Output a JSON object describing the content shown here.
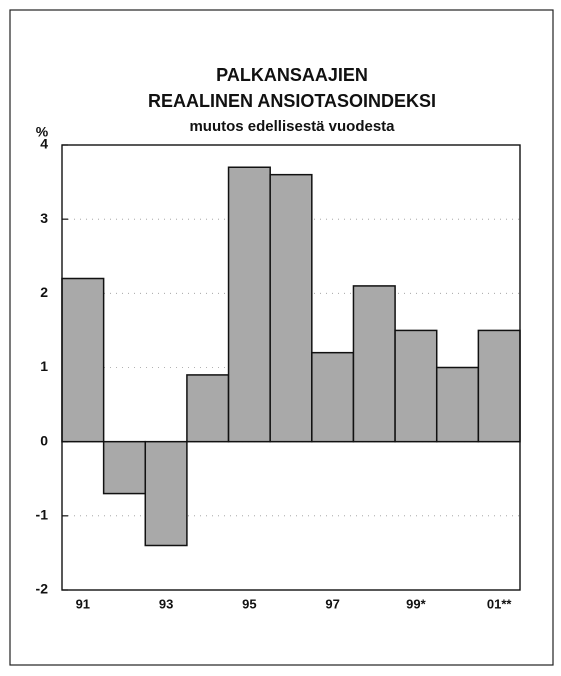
{
  "chart_data": {
    "type": "bar",
    "title": [
      "PALKANSAAJIEN",
      "REAALINEN ANSIOTASOINDEKSI"
    ],
    "subtitle": "muutos edellisestä vuodesta",
    "y_label": "%",
    "categories": [
      "91",
      null,
      "93",
      null,
      "95",
      null,
      "97",
      null,
      "99*",
      null,
      "01**"
    ],
    "values": [
      2.2,
      -0.7,
      -1.4,
      0.9,
      3.7,
      3.6,
      1.2,
      2.1,
      1.5,
      1.0,
      1.5
    ],
    "color": "#a9a9a9",
    "ylim": [
      -2,
      4
    ],
    "yticks": [
      -2,
      -1,
      0,
      1,
      2,
      3,
      4
    ],
    "grid": true
  }
}
